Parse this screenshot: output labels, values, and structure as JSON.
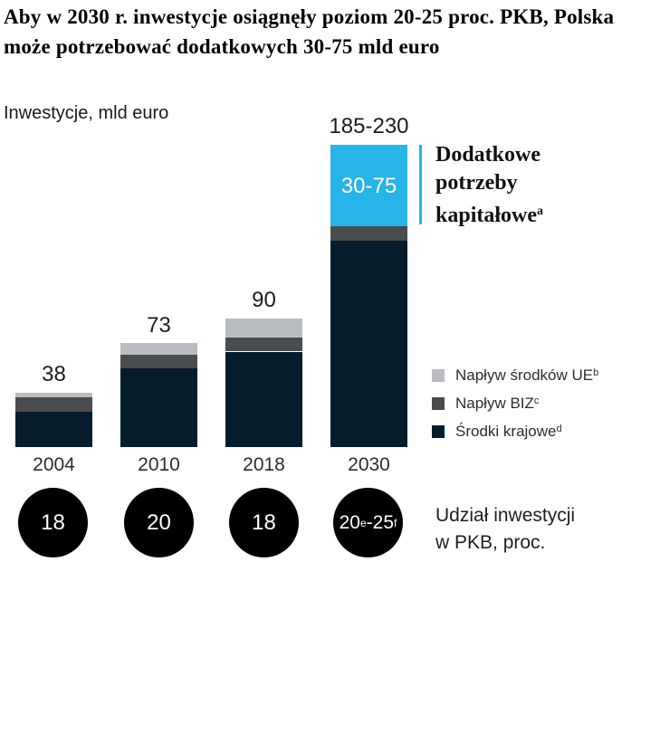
{
  "title": "Aby w 2030 r. inwestycje osiągnęły poziom 20-25 proc. PKB, Polska może potrzebować dodatkowych 30-75 mld euro",
  "subtitle": "Inwestycje, mld euro",
  "colors": {
    "domestic_navy": "#051c2c",
    "biz_dark_gray": "#4a4c4f",
    "eu_light_gray": "#b9bcc0",
    "additional_cyan": "#27b4e8",
    "circle_black": "#000000"
  },
  "annotation": {
    "lines": [
      "Dodatkowe",
      "potrzeby",
      "kapitałowe"
    ],
    "sup": "a"
  },
  "legend": {
    "items": [
      {
        "label": "Napływ środków UE",
        "sup": "b",
        "color": "#b9bcc0"
      },
      {
        "label": "Napływ BIZ",
        "sup": "c",
        "color": "#4a4c4f"
      },
      {
        "label": "Środki krajowe",
        "sup": "d",
        "color": "#051c2c"
      }
    ]
  },
  "pkb": {
    "label_line1": "Udział inwestycji",
    "label_line2": "w PKB, proc.",
    "circles": [
      {
        "text": "18"
      },
      {
        "text": "20"
      },
      {
        "text": "18"
      },
      {
        "parts": [
          "20",
          "e",
          "-25",
          "f"
        ]
      }
    ]
  },
  "chart_data": {
    "type": "bar",
    "stacked": true,
    "title": "Inwestycje, mld euro",
    "categories": [
      "2004",
      "2010",
      "2018",
      "2030"
    ],
    "totals": [
      "38",
      "73",
      "90",
      "185-230"
    ],
    "inner_label_2030": "30-75",
    "values_estimated_from_pixels": true,
    "series": [
      {
        "name": "Środki krajowe",
        "color": "#051c2c",
        "values": [
          25,
          55,
          67,
          145
        ]
      },
      {
        "name": "Napływ BIZ",
        "color": "#4a4c4f",
        "values": [
          10,
          10,
          10,
          10
        ]
      },
      {
        "name": "Napływ środków UE",
        "color": "#b9bcc0",
        "values": [
          3,
          8,
          13,
          0
        ]
      },
      {
        "name": "Dodatkowe potrzeby kapitałowe",
        "color": "#27b4e8",
        "values": [
          0,
          0,
          0,
          57
        ],
        "value_label": "30-75"
      }
    ],
    "pkb_share_percent": [
      "18",
      "20",
      "18",
      "20e-25f"
    ],
    "ylabel": "mld euro",
    "legend_position": "right",
    "grid": false
  }
}
